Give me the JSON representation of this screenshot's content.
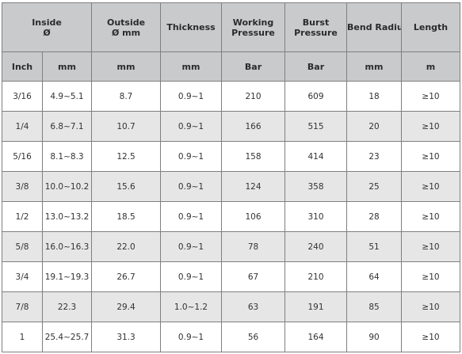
{
  "table": {
    "headers": {
      "inside": "Inside",
      "inside_symbol": "Ø",
      "outside": "Outside",
      "outside_unit": "Ø mm",
      "thickness": "Thickness",
      "working": "Working",
      "working2": "Pressure",
      "burst": "Burst",
      "burst2": "Pressure",
      "bend_radius": "Bend Radius",
      "length": "Length"
    },
    "units": [
      "Inch",
      "mm",
      "mm",
      "mm",
      "Bar",
      "Bar",
      "mm",
      "m"
    ],
    "rows": [
      [
        "3/16",
        "4.9~5.1",
        "8.7",
        "0.9~1",
        "210",
        "609",
        "18",
        "≥10"
      ],
      [
        "1/4",
        "6.8~7.1",
        "10.7",
        "0.9~1",
        "166",
        "515",
        "20",
        "≥10"
      ],
      [
        "5/16",
        "8.1~8.3",
        "12.5",
        "0.9~1",
        "158",
        "414",
        "23",
        "≥10"
      ],
      [
        "3/8",
        "10.0~10.2",
        "15.6",
        "0.9~1",
        "124",
        "358",
        "25",
        "≥10"
      ],
      [
        "1/2",
        "13.0~13.2",
        "18.5",
        "0.9~1",
        "106",
        "310",
        "28",
        "≥10"
      ],
      [
        "5/8",
        "16.0~16.3",
        "22.0",
        "0.9~1",
        "78",
        "240",
        "51",
        "≥10"
      ],
      [
        "3/4",
        "19.1~19.3",
        "26.7",
        "0.9~1",
        "67",
        "210",
        "64",
        "≥10"
      ],
      [
        "7/8",
        "22.3",
        "29.4",
        "1.0~1.2",
        "63",
        "191",
        "85",
        "≥10"
      ],
      [
        "1",
        "25.4~25.7",
        "31.3",
        "0.9~1",
        "56",
        "164",
        "90",
        "≥10"
      ]
    ]
  }
}
